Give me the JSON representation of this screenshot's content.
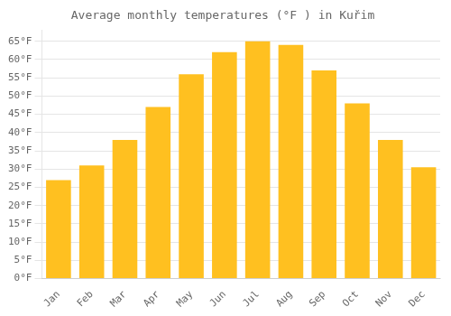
{
  "chart_data": {
    "type": "bar",
    "title": "Average monthly temperatures (°F ) in Kuřim",
    "categories": [
      "Jan",
      "Feb",
      "Mar",
      "Apr",
      "May",
      "Jun",
      "Jul",
      "Aug",
      "Sep",
      "Oct",
      "Nov",
      "Dec"
    ],
    "values": [
      27,
      31,
      38,
      47,
      56,
      62,
      65,
      64,
      57,
      48,
      38,
      30.5
    ],
    "color": "#FFC020",
    "ylim": [
      0,
      68
    ],
    "yticks": [
      {
        "value": 0,
        "label": "0°F"
      },
      {
        "value": 5,
        "label": "5°F"
      },
      {
        "value": 10,
        "label": "10°F"
      },
      {
        "value": 15,
        "label": "15°F"
      },
      {
        "value": 20,
        "label": "20°F"
      },
      {
        "value": 25,
        "label": "25°F"
      },
      {
        "value": 30,
        "label": "30°F"
      },
      {
        "value": 35,
        "label": "35°F"
      },
      {
        "value": 40,
        "label": "40°F"
      },
      {
        "value": 45,
        "label": "45°F"
      },
      {
        "value": 50,
        "label": "50°F"
      },
      {
        "value": 55,
        "label": "55°F"
      },
      {
        "value": 60,
        "label": "60°F"
      },
      {
        "value": 65,
        "label": "65°F"
      }
    ],
    "grid": true
  }
}
